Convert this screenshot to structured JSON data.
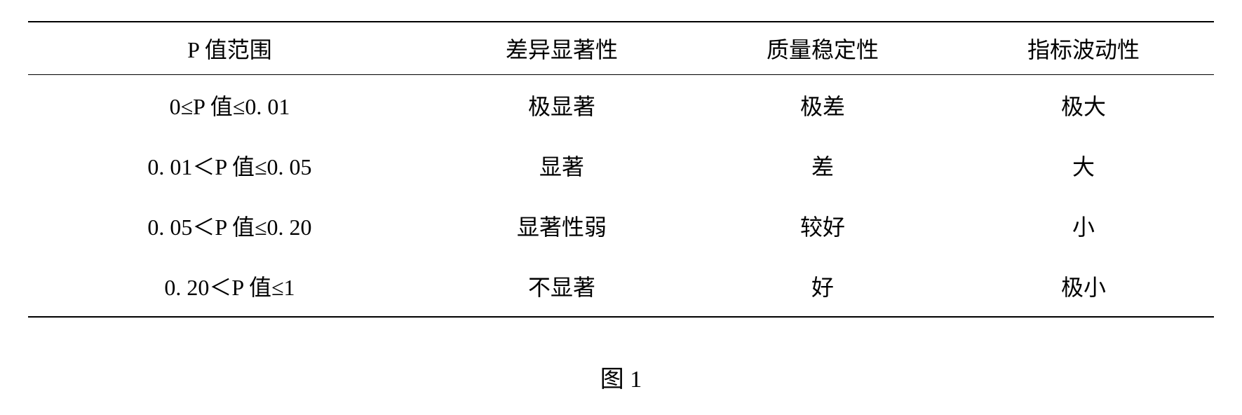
{
  "table": {
    "type": "table",
    "background_color": "#ffffff",
    "border_color": "#000000",
    "header_border_top_width": 2,
    "header_border_bottom_width": 1.5,
    "bottom_border_width": 2,
    "font_family": "SimSun",
    "header_fontsize": 32,
    "cell_fontsize": 32,
    "text_color": "#000000",
    "column_widths_pct": [
      34,
      22,
      22,
      22
    ],
    "alignment": "center",
    "columns": [
      "P 值范围",
      "差异显著性",
      "质量稳定性",
      "指标波动性"
    ],
    "rows": [
      [
        "0≤P 值≤0. 01",
        "极显著",
        "极差",
        "极大"
      ],
      [
        "0. 01＜P 值≤0. 05",
        "显著",
        "差",
        "大"
      ],
      [
        "0. 05＜P 值≤0. 20",
        "显著性弱",
        "较好",
        "小"
      ],
      [
        "0. 20＜P 值≤1",
        "不显著",
        "好",
        "极小"
      ]
    ]
  },
  "caption": "图 1"
}
